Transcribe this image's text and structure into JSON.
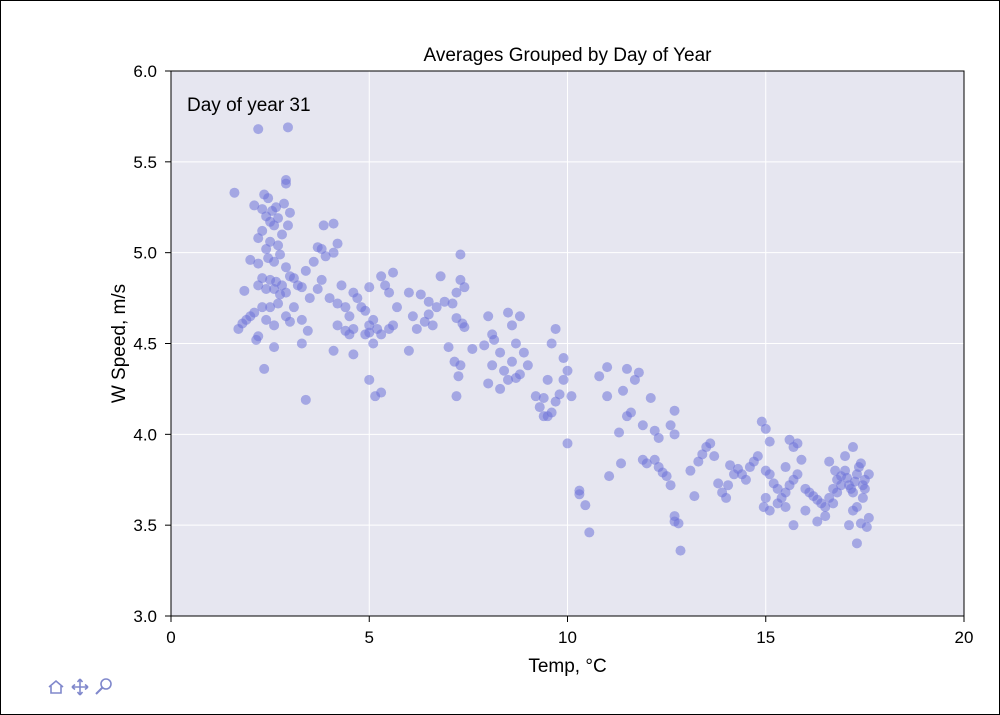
{
  "chart_data": {
    "type": "scatter",
    "title": "Averages Grouped by Day of Year",
    "xlabel": "Temp, °C",
    "ylabel": "W Speed, m/s",
    "xlim": [
      0,
      20
    ],
    "ylim": [
      3.0,
      6.0
    ],
    "xticks": [
      0,
      5,
      10,
      15,
      20
    ],
    "yticks": [
      3.0,
      3.5,
      4.0,
      4.5,
      5.0,
      5.5,
      6.0
    ],
    "grid": true,
    "annotation": "Day of year 31",
    "colors": {
      "background": "#e6e6f0",
      "grid": "#ffffff",
      "marker": "#6e73d9"
    },
    "points": [
      [
        1.6,
        5.33
      ],
      [
        2.2,
        5.68
      ],
      [
        2.95,
        5.69
      ],
      [
        2.9,
        5.4
      ],
      [
        2.9,
        5.38
      ],
      [
        2.35,
        5.32
      ],
      [
        2.45,
        5.3
      ],
      [
        2.1,
        5.26
      ],
      [
        2.3,
        5.24
      ],
      [
        2.55,
        5.23
      ],
      [
        2.65,
        5.25
      ],
      [
        2.4,
        5.2
      ],
      [
        2.5,
        5.17
      ],
      [
        2.7,
        5.19
      ],
      [
        2.85,
        5.27
      ],
      [
        3.0,
        5.22
      ],
      [
        2.95,
        5.15
      ],
      [
        2.6,
        5.15
      ],
      [
        2.3,
        5.12
      ],
      [
        2.8,
        5.1
      ],
      [
        2.2,
        5.08
      ],
      [
        2.5,
        5.06
      ],
      [
        2.4,
        5.02
      ],
      [
        2.7,
        5.04
      ],
      [
        2.75,
        4.99
      ],
      [
        2.45,
        4.97
      ],
      [
        2.0,
        4.96
      ],
      [
        2.2,
        4.94
      ],
      [
        2.6,
        4.95
      ],
      [
        2.9,
        4.92
      ],
      [
        3.0,
        4.87
      ],
      [
        3.1,
        4.86
      ],
      [
        2.3,
        4.86
      ],
      [
        2.5,
        4.85
      ],
      [
        2.65,
        4.84
      ],
      [
        2.8,
        4.82
      ],
      [
        2.2,
        4.82
      ],
      [
        2.4,
        4.8
      ],
      [
        2.6,
        4.8
      ],
      [
        2.9,
        4.78
      ],
      [
        1.85,
        4.79
      ],
      [
        2.75,
        4.77
      ],
      [
        3.2,
        4.82
      ],
      [
        3.3,
        4.81
      ],
      [
        2.7,
        4.72
      ],
      [
        2.5,
        4.7
      ],
      [
        2.3,
        4.7
      ],
      [
        2.1,
        4.67
      ],
      [
        2.0,
        4.65
      ],
      [
        1.9,
        4.63
      ],
      [
        1.8,
        4.61
      ],
      [
        1.7,
        4.58
      ],
      [
        2.4,
        4.63
      ],
      [
        2.6,
        4.6
      ],
      [
        2.9,
        4.65
      ],
      [
        3.1,
        4.7
      ],
      [
        3.0,
        4.62
      ],
      [
        2.2,
        4.54
      ],
      [
        2.6,
        4.48
      ],
      [
        2.15,
        4.52
      ],
      [
        2.35,
        4.36
      ],
      [
        3.3,
        4.5
      ],
      [
        3.3,
        4.63
      ],
      [
        3.45,
        4.57
      ],
      [
        3.4,
        4.19
      ],
      [
        3.4,
        4.9
      ],
      [
        3.5,
        4.75
      ],
      [
        3.6,
        4.95
      ],
      [
        3.7,
        5.03
      ],
      [
        3.8,
        5.02
      ],
      [
        3.85,
        5.15
      ],
      [
        4.1,
        5.16
      ],
      [
        4.2,
        5.05
      ],
      [
        3.9,
        4.98
      ],
      [
        4.1,
        5.0
      ],
      [
        3.8,
        4.85
      ],
      [
        3.7,
        4.8
      ],
      [
        4.0,
        4.75
      ],
      [
        4.2,
        4.72
      ],
      [
        4.3,
        4.82
      ],
      [
        4.4,
        4.7
      ],
      [
        4.5,
        4.65
      ],
      [
        4.6,
        4.78
      ],
      [
        4.7,
        4.75
      ],
      [
        4.8,
        4.7
      ],
      [
        4.9,
        4.68
      ],
      [
        5.0,
        4.6
      ],
      [
        5.1,
        4.63
      ],
      [
        5.2,
        4.58
      ],
      [
        4.6,
        4.58
      ],
      [
        4.5,
        4.55
      ],
      [
        4.4,
        4.57
      ],
      [
        4.2,
        4.6
      ],
      [
        4.1,
        4.46
      ],
      [
        4.6,
        4.44
      ],
      [
        4.9,
        4.55
      ],
      [
        5.0,
        4.56
      ],
      [
        5.1,
        4.5
      ],
      [
        5.3,
        4.55
      ],
      [
        5.5,
        4.58
      ],
      [
        5.6,
        4.6
      ],
      [
        5.0,
        4.81
      ],
      [
        5.3,
        4.87
      ],
      [
        5.6,
        4.89
      ],
      [
        5.4,
        4.82
      ],
      [
        5.5,
        4.78
      ],
      [
        5.7,
        4.7
      ],
      [
        5.0,
        4.3
      ],
      [
        5.15,
        4.21
      ],
      [
        5.3,
        4.23
      ],
      [
        6.0,
        4.46
      ],
      [
        6.1,
        4.65
      ],
      [
        6.2,
        4.58
      ],
      [
        6.0,
        4.78
      ],
      [
        6.3,
        4.77
      ],
      [
        6.5,
        4.73
      ],
      [
        6.6,
        4.6
      ],
      [
        6.4,
        4.62
      ],
      [
        6.5,
        4.66
      ],
      [
        6.7,
        4.7
      ],
      [
        6.8,
        4.87
      ],
      [
        6.9,
        4.73
      ],
      [
        7.0,
        4.48
      ],
      [
        7.1,
        4.72
      ],
      [
        7.2,
        4.78
      ],
      [
        7.3,
        4.85
      ],
      [
        7.4,
        4.81
      ],
      [
        7.2,
        4.64
      ],
      [
        7.35,
        4.61
      ],
      [
        7.4,
        4.59
      ],
      [
        7.15,
        4.4
      ],
      [
        7.3,
        4.38
      ],
      [
        7.25,
        4.32
      ],
      [
        7.3,
        4.99
      ],
      [
        7.2,
        4.21
      ],
      [
        7.6,
        4.47
      ],
      [
        7.9,
        4.49
      ],
      [
        8.0,
        4.65
      ],
      [
        8.1,
        4.55
      ],
      [
        8.15,
        4.52
      ],
      [
        8.3,
        4.45
      ],
      [
        8.1,
        4.38
      ],
      [
        8.0,
        4.28
      ],
      [
        8.5,
        4.67
      ],
      [
        8.6,
        4.6
      ],
      [
        8.7,
        4.5
      ],
      [
        8.8,
        4.65
      ],
      [
        8.9,
        4.45
      ],
      [
        8.4,
        4.35
      ],
      [
        8.6,
        4.4
      ],
      [
        8.8,
        4.33
      ],
      [
        8.7,
        4.31
      ],
      [
        8.5,
        4.3
      ],
      [
        8.3,
        4.25
      ],
      [
        9.0,
        4.38
      ],
      [
        9.2,
        4.21
      ],
      [
        9.3,
        4.15
      ],
      [
        9.4,
        4.2
      ],
      [
        9.5,
        4.3
      ],
      [
        9.6,
        4.5
      ],
      [
        9.7,
        4.58
      ],
      [
        9.6,
        4.12
      ],
      [
        9.5,
        4.1
      ],
      [
        9.7,
        4.18
      ],
      [
        9.8,
        4.22
      ],
      [
        9.9,
        4.42
      ],
      [
        9.9,
        4.3
      ],
      [
        10.0,
        4.35
      ],
      [
        10.1,
        4.21
      ],
      [
        10.0,
        3.95
      ],
      [
        9.4,
        4.1
      ],
      [
        10.3,
        3.69
      ],
      [
        10.3,
        3.67
      ],
      [
        10.45,
        3.61
      ],
      [
        10.55,
        3.46
      ],
      [
        10.8,
        4.32
      ],
      [
        11.0,
        4.37
      ],
      [
        11.05,
        3.77
      ],
      [
        11.0,
        4.21
      ],
      [
        11.3,
        4.01
      ],
      [
        11.35,
        3.84
      ],
      [
        11.4,
        4.24
      ],
      [
        11.5,
        4.1
      ],
      [
        11.6,
        4.12
      ],
      [
        11.5,
        4.36
      ],
      [
        11.7,
        4.3
      ],
      [
        11.8,
        4.34
      ],
      [
        11.9,
        4.05
      ],
      [
        11.9,
        3.86
      ],
      [
        12.0,
        3.84
      ],
      [
        12.1,
        4.2
      ],
      [
        12.2,
        4.02
      ],
      [
        12.3,
        3.98
      ],
      [
        12.2,
        3.86
      ],
      [
        12.3,
        3.82
      ],
      [
        12.4,
        3.79
      ],
      [
        12.5,
        3.77
      ],
      [
        12.6,
        4.05
      ],
      [
        12.7,
        4.13
      ],
      [
        12.7,
        4.0
      ],
      [
        12.6,
        3.72
      ],
      [
        12.7,
        3.55
      ],
      [
        12.8,
        3.51
      ],
      [
        12.7,
        3.52
      ],
      [
        12.85,
        3.36
      ],
      [
        13.1,
        3.8
      ],
      [
        13.2,
        3.66
      ],
      [
        13.3,
        3.85
      ],
      [
        13.4,
        3.89
      ],
      [
        13.5,
        3.93
      ],
      [
        13.6,
        3.95
      ],
      [
        13.7,
        3.88
      ],
      [
        13.8,
        3.73
      ],
      [
        13.9,
        3.68
      ],
      [
        14.0,
        3.65
      ],
      [
        14.05,
        3.72
      ],
      [
        14.1,
        3.83
      ],
      [
        14.2,
        3.78
      ],
      [
        14.3,
        3.81
      ],
      [
        14.4,
        3.78
      ],
      [
        14.5,
        3.75
      ],
      [
        14.6,
        3.82
      ],
      [
        14.7,
        3.85
      ],
      [
        14.8,
        3.88
      ],
      [
        14.9,
        4.07
      ],
      [
        15.0,
        4.03
      ],
      [
        15.1,
        3.96
      ],
      [
        15.0,
        3.8
      ],
      [
        15.1,
        3.78
      ],
      [
        15.2,
        3.73
      ],
      [
        15.3,
        3.7
      ],
      [
        15.0,
        3.65
      ],
      [
        14.95,
        3.6
      ],
      [
        15.1,
        3.58
      ],
      [
        15.3,
        3.62
      ],
      [
        15.4,
        3.65
      ],
      [
        15.5,
        3.68
      ],
      [
        15.6,
        3.72
      ],
      [
        15.7,
        3.75
      ],
      [
        15.8,
        3.78
      ],
      [
        15.6,
        3.97
      ],
      [
        15.7,
        3.93
      ],
      [
        15.8,
        3.95
      ],
      [
        15.5,
        3.82
      ],
      [
        15.9,
        3.86
      ],
      [
        16.0,
        3.7
      ],
      [
        16.1,
        3.68
      ],
      [
        16.2,
        3.66
      ],
      [
        16.3,
        3.64
      ],
      [
        16.4,
        3.62
      ],
      [
        16.5,
        3.6
      ],
      [
        16.6,
        3.65
      ],
      [
        16.7,
        3.7
      ],
      [
        16.8,
        3.75
      ],
      [
        16.9,
        3.77
      ],
      [
        17.0,
        3.8
      ],
      [
        17.05,
        3.76
      ],
      [
        17.1,
        3.72
      ],
      [
        17.15,
        3.7
      ],
      [
        17.2,
        3.68
      ],
      [
        17.25,
        3.74
      ],
      [
        17.3,
        3.78
      ],
      [
        17.35,
        3.82
      ],
      [
        17.4,
        3.84
      ],
      [
        17.45,
        3.72
      ],
      [
        17.5,
        3.7
      ],
      [
        17.3,
        3.6
      ],
      [
        17.2,
        3.58
      ],
      [
        17.1,
        3.5
      ],
      [
        17.4,
        3.51
      ],
      [
        17.55,
        3.49
      ],
      [
        17.6,
        3.54
      ],
      [
        17.3,
        3.4
      ],
      [
        17.2,
        3.93
      ],
      [
        17.0,
        3.88
      ],
      [
        16.9,
        3.72
      ],
      [
        16.8,
        3.68
      ],
      [
        16.7,
        3.62
      ],
      [
        16.5,
        3.55
      ],
      [
        16.3,
        3.52
      ],
      [
        15.7,
        3.5
      ],
      [
        16.0,
        3.58
      ],
      [
        15.5,
        3.6
      ],
      [
        16.6,
        3.85
      ],
      [
        16.75,
        3.8
      ],
      [
        17.6,
        3.78
      ],
      [
        17.5,
        3.75
      ],
      [
        17.45,
        3.65
      ]
    ]
  },
  "toolbar": {
    "tools": [
      "home-icon",
      "pan-icon",
      "zoom-icon"
    ]
  }
}
